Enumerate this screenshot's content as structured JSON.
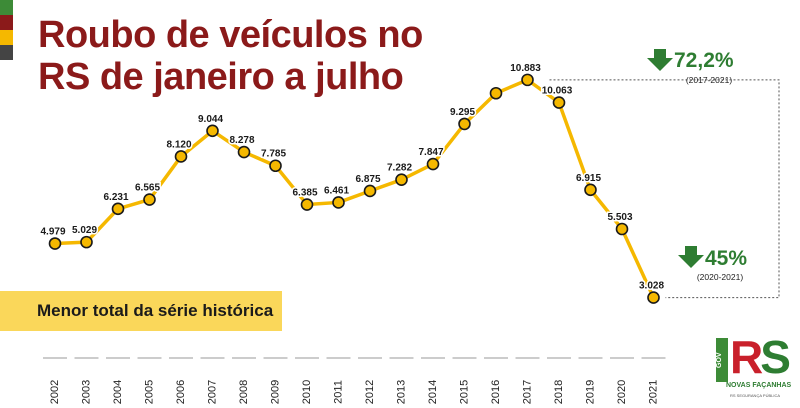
{
  "title": {
    "line1": "Roubo de veículos no",
    "line2": "RS de janeiro a julho"
  },
  "note": "Menor total da série histórica",
  "stripe_colors": [
    "#3d8b37",
    "#8b1a1a",
    "#f5b800",
    "#444444"
  ],
  "colors": {
    "title": "#8b1a1a",
    "line": "#f5b800",
    "marker_fill": "#f5b800",
    "marker_stroke": "#1a1a1a",
    "arrow": "#2e7d32",
    "note_bg": "#fad75a",
    "bracket": "#555555"
  },
  "chart_data": {
    "type": "line",
    "x": [
      "2002",
      "2003",
      "2004",
      "2005",
      "2006",
      "2007",
      "2008",
      "2009",
      "2010",
      "2011",
      "2012",
      "2013",
      "2014",
      "2015",
      "2016",
      "2017",
      "2018",
      "2019",
      "2020",
      "2021"
    ],
    "values": [
      4979,
      5029,
      6231,
      6565,
      8120,
      9044,
      8278,
      7785,
      6385,
      6461,
      6875,
      7282,
      7847,
      9295,
      10400,
      10883,
      10063,
      6915,
      5503,
      3028
    ],
    "data_labels": [
      "4.979",
      "5.029",
      "6.231",
      "6.565",
      "8.120",
      "9.044",
      "8.278",
      "7.785",
      "6.385",
      "6.461",
      "6.875",
      "7.282",
      "7.847",
      "9.295",
      "",
      "10.883",
      "10.063",
      "6.915",
      "5.503",
      "3.028"
    ],
    "ylim": [
      2400,
      11600
    ],
    "grid": false,
    "annotations": [
      {
        "from": "2017",
        "to": "2021",
        "value": "72,2%",
        "period": "(2017-2021)",
        "direction": "down"
      },
      {
        "from": "2020",
        "to": "2021",
        "value": "45%",
        "period": "(2020-2021)",
        "direction": "down"
      }
    ]
  },
  "logo": {
    "gov": "GOV",
    "rs_r": "R",
    "rs_s": "S",
    "tagline": "NOVAS FAÇANHAS",
    "subtitle": "RS SEGURANÇA PÚBLICA"
  }
}
